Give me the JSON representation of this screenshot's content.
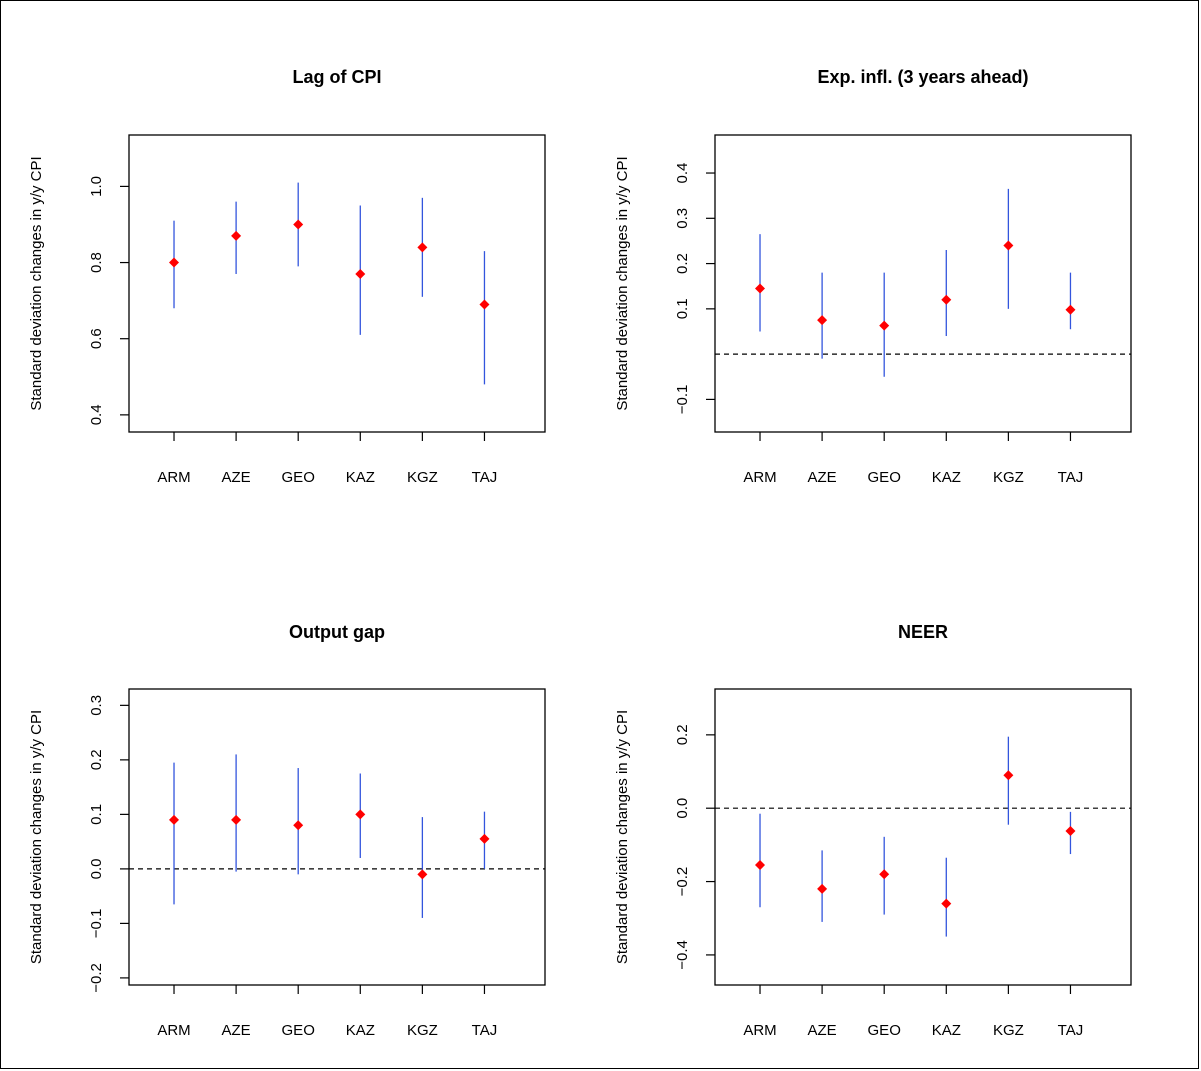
{
  "chart_data": [
    {
      "type": "scatter",
      "title": "Lag of CPI",
      "ylabel": "Standard deviation changes in y/y CPI",
      "categories": [
        "ARM",
        "AZE",
        "GEO",
        "KAZ",
        "KGZ",
        "TAJ"
      ],
      "ylim": [
        0.355,
        1.135
      ],
      "yticks": [
        "0.4",
        "0.6",
        "0.8",
        "1.0"
      ],
      "zero_line": false,
      "point_color": "#ff0000",
      "interval_color": "#3355dd",
      "series": [
        {
          "values": [
            0.8,
            0.87,
            0.9,
            0.77,
            0.84,
            0.69
          ],
          "lower": [
            0.68,
            0.77,
            0.79,
            0.61,
            0.71,
            0.48
          ],
          "upper": [
            0.91,
            0.96,
            1.01,
            0.95,
            0.97,
            0.83
          ]
        }
      ]
    },
    {
      "type": "scatter",
      "title": "Exp. infl. (3 years ahead)",
      "ylabel": "Standard deviation changes in y/y CPI",
      "categories": [
        "ARM",
        "AZE",
        "GEO",
        "KAZ",
        "KGZ",
        "TAJ"
      ],
      "ylim": [
        -0.172,
        0.484
      ],
      "yticks": [
        "-0.1",
        "0.1",
        "0.2",
        "0.3",
        "0.4"
      ],
      "zero_line": true,
      "point_color": "#ff0000",
      "interval_color": "#3355dd",
      "series": [
        {
          "values": [
            0.145,
            0.075,
            0.063,
            0.12,
            0.24,
            0.098
          ],
          "lower": [
            0.05,
            -0.01,
            -0.05,
            0.04,
            0.1,
            0.055
          ],
          "upper": [
            0.265,
            0.18,
            0.18,
            0.23,
            0.365,
            0.18
          ]
        }
      ]
    },
    {
      "type": "scatter",
      "title": "Output gap",
      "ylabel": "Standard deviation changes in y/y CPI",
      "categories": [
        "ARM",
        "AZE",
        "GEO",
        "KAZ",
        "KGZ",
        "TAJ"
      ],
      "ylim": [
        -0.213,
        0.33
      ],
      "yticks": [
        "-0.2",
        "-0.1",
        "0.0",
        "0.1",
        "0.2",
        "0.3"
      ],
      "zero_line": true,
      "point_color": "#ff0000",
      "interval_color": "#3355dd",
      "series": [
        {
          "values": [
            0.09,
            0.09,
            0.08,
            0.1,
            -0.01,
            0.055
          ],
          "lower": [
            -0.065,
            -0.005,
            -0.01,
            0.02,
            -0.09,
            0.0
          ],
          "upper": [
            0.195,
            0.21,
            0.185,
            0.175,
            0.095,
            0.105
          ]
        }
      ]
    },
    {
      "type": "scatter",
      "title": "NEER",
      "ylabel": "Standard deviation changes in y/y CPI",
      "categories": [
        "ARM",
        "AZE",
        "GEO",
        "KAZ",
        "KGZ",
        "TAJ"
      ],
      "ylim": [
        -0.482,
        0.325
      ],
      "yticks": [
        "-0.4",
        "-0.2",
        "0.0",
        "0.2"
      ],
      "zero_line": true,
      "point_color": "#ff0000",
      "interval_color": "#3355dd",
      "series": [
        {
          "values": [
            -0.155,
            -0.22,
            -0.18,
            -0.26,
            0.09,
            -0.062
          ],
          "lower": [
            -0.27,
            -0.31,
            -0.29,
            -0.35,
            -0.045,
            -0.125
          ],
          "upper": [
            -0.015,
            -0.115,
            -0.078,
            -0.135,
            0.195,
            -0.01
          ]
        }
      ]
    }
  ]
}
